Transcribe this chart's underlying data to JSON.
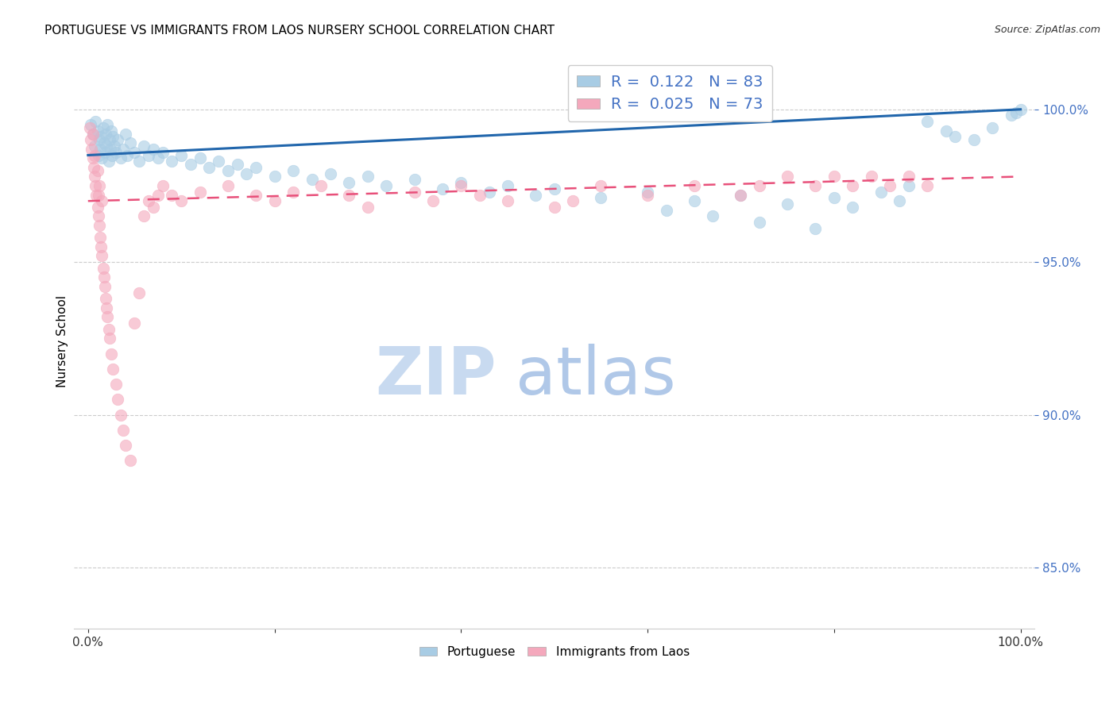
{
  "title": "PORTUGUESE VS IMMIGRANTS FROM LAOS NURSERY SCHOOL CORRELATION CHART",
  "source": "Source: ZipAtlas.com",
  "ylabel": "Nursery School",
  "blue_color": "#a8cce4",
  "pink_color": "#f4a8bc",
  "blue_line_color": "#2166ac",
  "pink_line_color": "#e8507a",
  "blue_line_y0": 98.5,
  "blue_line_y1": 100.0,
  "pink_line_y0": 97.0,
  "pink_line_y1": 97.8,
  "ylim_min": 83.0,
  "ylim_max": 101.8,
  "xlim_min": -1.5,
  "xlim_max": 101.5,
  "yticks": [
    85.0,
    90.0,
    95.0,
    100.0
  ],
  "ytick_labels": [
    "85.0%",
    "90.0%",
    "95.0%",
    "100.0%"
  ],
  "watermark_zip_color": "#c8daf0",
  "watermark_atlas_color": "#b0c8e8",
  "legend_r_blue": "R =  0.122",
  "legend_n_blue": "N = 83",
  "legend_r_pink": "R =  0.025",
  "legend_n_pink": "N = 73",
  "legend_text_color": "#4472c4",
  "blue_pts_x": [
    0.3,
    0.5,
    0.7,
    0.8,
    1.0,
    1.1,
    1.2,
    1.3,
    1.4,
    1.5,
    1.6,
    1.7,
    1.8,
    1.9,
    2.0,
    2.1,
    2.2,
    2.3,
    2.4,
    2.5,
    2.6,
    2.7,
    2.8,
    3.0,
    3.2,
    3.5,
    3.8,
    4.0,
    4.2,
    4.5,
    5.0,
    5.5,
    6.0,
    6.5,
    7.0,
    7.5,
    8.0,
    9.0,
    10.0,
    11.0,
    12.0,
    13.0,
    14.0,
    15.0,
    16.0,
    17.0,
    18.0,
    20.0,
    22.0,
    24.0,
    26.0,
    28.0,
    30.0,
    32.0,
    35.0,
    38.0,
    40.0,
    43.0,
    45.0,
    48.0,
    50.0,
    55.0,
    60.0,
    65.0,
    70.0,
    75.0,
    80.0,
    85.0,
    88.0,
    90.0,
    92.0,
    95.0,
    97.0,
    99.0,
    99.5,
    100.0,
    62.0,
    67.0,
    72.0,
    78.0,
    82.0,
    87.0,
    93.0
  ],
  "blue_pts_y": [
    99.5,
    99.2,
    98.8,
    99.6,
    99.3,
    98.5,
    99.0,
    98.7,
    99.1,
    98.4,
    99.4,
    98.9,
    98.6,
    99.2,
    98.8,
    99.5,
    98.3,
    99.0,
    98.7,
    99.3,
    98.5,
    99.1,
    98.8,
    98.6,
    99.0,
    98.4,
    98.7,
    99.2,
    98.5,
    98.9,
    98.6,
    98.3,
    98.8,
    98.5,
    98.7,
    98.4,
    98.6,
    98.3,
    98.5,
    98.2,
    98.4,
    98.1,
    98.3,
    98.0,
    98.2,
    97.9,
    98.1,
    97.8,
    98.0,
    97.7,
    97.9,
    97.6,
    97.8,
    97.5,
    97.7,
    97.4,
    97.6,
    97.3,
    97.5,
    97.2,
    97.4,
    97.1,
    97.3,
    97.0,
    97.2,
    96.9,
    97.1,
    97.3,
    97.5,
    99.6,
    99.3,
    99.0,
    99.4,
    99.8,
    99.9,
    100.0,
    96.7,
    96.5,
    96.3,
    96.1,
    96.8,
    97.0,
    99.1
  ],
  "pink_pts_x": [
    0.2,
    0.3,
    0.4,
    0.5,
    0.5,
    0.6,
    0.7,
    0.7,
    0.8,
    0.9,
    1.0,
    1.0,
    1.1,
    1.1,
    1.2,
    1.2,
    1.3,
    1.4,
    1.5,
    1.5,
    1.6,
    1.7,
    1.8,
    1.9,
    2.0,
    2.1,
    2.2,
    2.3,
    2.5,
    2.7,
    3.0,
    3.2,
    3.5,
    3.8,
    4.0,
    4.5,
    5.0,
    5.5,
    6.0,
    6.5,
    7.0,
    7.5,
    8.0,
    9.0,
    10.0,
    12.0,
    15.0,
    18.0,
    20.0,
    22.0,
    25.0,
    28.0,
    30.0,
    35.0,
    37.0,
    40.0,
    42.0,
    45.0,
    50.0,
    52.0,
    55.0,
    60.0,
    65.0,
    70.0,
    72.0,
    75.0,
    78.0,
    80.0,
    82.0,
    84.0,
    86.0,
    88.0,
    90.0
  ],
  "pink_pts_y": [
    99.4,
    99.0,
    98.7,
    98.4,
    99.2,
    98.1,
    97.8,
    98.5,
    97.5,
    97.2,
    96.8,
    98.0,
    96.5,
    97.2,
    96.2,
    97.5,
    95.8,
    95.5,
    95.2,
    97.0,
    94.8,
    94.5,
    94.2,
    93.8,
    93.5,
    93.2,
    92.8,
    92.5,
    92.0,
    91.5,
    91.0,
    90.5,
    90.0,
    89.5,
    89.0,
    88.5,
    93.0,
    94.0,
    96.5,
    97.0,
    96.8,
    97.2,
    97.5,
    97.2,
    97.0,
    97.3,
    97.5,
    97.2,
    97.0,
    97.3,
    97.5,
    97.2,
    96.8,
    97.3,
    97.0,
    97.5,
    97.2,
    97.0,
    96.8,
    97.0,
    97.5,
    97.2,
    97.5,
    97.2,
    97.5,
    97.8,
    97.5,
    97.8,
    97.5,
    97.8,
    97.5,
    97.8,
    97.5
  ]
}
